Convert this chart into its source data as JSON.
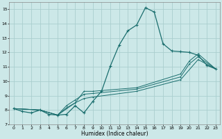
{
  "xlabel": "Humidex (Indice chaleur)",
  "bg_color": "#cce8e8",
  "grid_color": "#aacece",
  "line_color": "#1a6e6e",
  "xlim": [
    -0.5,
    23.5
  ],
  "ylim": [
    7,
    15.5
  ],
  "yticks": [
    7,
    8,
    9,
    10,
    11,
    12,
    13,
    14,
    15
  ],
  "xticks": [
    0,
    1,
    2,
    3,
    4,
    5,
    6,
    7,
    8,
    9,
    10,
    11,
    12,
    13,
    14,
    15,
    16,
    17,
    18,
    19,
    20,
    21,
    22,
    23
  ],
  "line1_x": [
    0,
    1,
    2,
    3,
    4,
    5,
    6,
    7,
    8,
    9,
    10,
    11,
    12,
    13,
    14,
    15,
    16,
    17,
    18,
    19,
    20,
    21,
    22,
    23
  ],
  "line1_y": [
    8.1,
    7.9,
    7.8,
    8.0,
    7.7,
    7.65,
    7.7,
    8.3,
    7.8,
    8.6,
    9.3,
    11.05,
    12.5,
    13.5,
    13.9,
    15.1,
    14.8,
    12.6,
    12.1,
    12.05,
    12.0,
    11.8,
    11.1,
    10.85
  ],
  "line2_x": [
    0,
    3,
    5,
    7,
    8,
    9,
    14,
    19,
    20,
    21,
    23
  ],
  "line2_y": [
    8.1,
    8.0,
    7.65,
    8.5,
    9.3,
    9.3,
    9.55,
    10.5,
    11.4,
    11.9,
    10.85
  ],
  "line3_x": [
    0,
    3,
    5,
    6,
    7,
    8,
    9,
    14,
    19,
    20,
    21,
    23
  ],
  "line3_y": [
    8.1,
    8.0,
    7.65,
    8.3,
    8.7,
    9.1,
    9.15,
    9.45,
    10.3,
    11.2,
    11.7,
    10.85
  ],
  "line4_x": [
    0,
    3,
    5,
    6,
    7,
    8,
    9,
    14,
    19,
    21,
    23
  ],
  "line4_y": [
    8.1,
    8.0,
    7.65,
    8.15,
    8.5,
    8.8,
    8.9,
    9.3,
    10.1,
    11.5,
    10.85
  ]
}
